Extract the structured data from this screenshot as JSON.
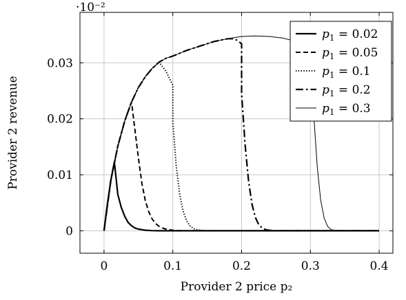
{
  "chart_data": {
    "type": "line",
    "title": "",
    "xlabel": "Provider 2 price p₂",
    "ylabel": "Provider 2 revenue",
    "scale_note": "·10⁻²",
    "xlim": [
      -0.035,
      0.42
    ],
    "ylim": [
      -0.004,
      0.039
    ],
    "x_ticks": [
      0,
      0.1,
      0.2,
      0.3,
      0.4
    ],
    "x_tick_labels": [
      "0",
      "0.1",
      "0.2",
      "0.3",
      "0.4"
    ],
    "y_ticks": [
      0,
      0.01,
      0.02,
      0.03
    ],
    "y_tick_labels": [
      "0",
      "0.01",
      "0.02",
      "0.03"
    ],
    "grid": true,
    "legend_position": "top-right",
    "series": [
      {
        "name": "p₁ = 0.02",
        "name_var": "p",
        "name_sub": "1",
        "name_val": " = 0.02",
        "style": "solid-thick",
        "x": [
          0,
          0.005,
          0.01,
          0.015,
          0.02,
          0.02,
          0.025,
          0.03,
          0.035,
          0.04,
          0.045,
          0.05,
          0.06,
          0.07,
          0.08,
          0.1,
          0.2,
          0.3,
          0.4
        ],
        "y": [
          0,
          0.0049,
          0.0091,
          0.0123,
          0.0065,
          0.0065,
          0.0042,
          0.0026,
          0.0015,
          0.0009,
          0.0005,
          0.0003,
          0.0001,
          3e-05,
          1e-05,
          0,
          0,
          0,
          0
        ]
      },
      {
        "name": "p₁ = 0.05",
        "name_var": "p",
        "name_sub": "1",
        "name_val": " = 0.05",
        "style": "dashed",
        "x": [
          0,
          0.01,
          0.02,
          0.03,
          0.04,
          0.05,
          0.05,
          0.055,
          0.06,
          0.065,
          0.07,
          0.075,
          0.08,
          0.085,
          0.09,
          0.1,
          0.11,
          0.12,
          0.2,
          0.3,
          0.4
        ],
        "y": [
          0,
          0.0091,
          0.0151,
          0.0196,
          0.023,
          0.013,
          0.013,
          0.0085,
          0.0054,
          0.0034,
          0.0021,
          0.0013,
          0.0008,
          0.0005,
          0.0003,
          0.0001,
          3e-05,
          0,
          0,
          0,
          0
        ]
      },
      {
        "name": "p₁ = 0.1",
        "name_var": "p",
        "name_sub": "1",
        "name_val": " = 0.1",
        "style": "dotted",
        "x": [
          0,
          0.01,
          0.02,
          0.03,
          0.04,
          0.05,
          0.06,
          0.07,
          0.08,
          0.09,
          0.1,
          0.1,
          0.105,
          0.11,
          0.115,
          0.12,
          0.125,
          0.13,
          0.135,
          0.14,
          0.15,
          0.2,
          0.3,
          0.4
        ],
        "y": [
          0,
          0.0091,
          0.0151,
          0.0196,
          0.023,
          0.0256,
          0.0275,
          0.029,
          0.0301,
          0.0285,
          0.026,
          0.0195,
          0.0115,
          0.0065,
          0.0035,
          0.0018,
          0.0009,
          0.0004,
          0.0002,
          0.0001,
          0,
          0,
          0,
          0
        ]
      },
      {
        "name": "p₁ = 0.2",
        "name_var": "p",
        "name_sub": "1",
        "name_val": " = 0.2",
        "style": "dashdot",
        "x": [
          0,
          0.01,
          0.02,
          0.03,
          0.04,
          0.05,
          0.06,
          0.07,
          0.08,
          0.09,
          0.1,
          0.12,
          0.14,
          0.16,
          0.18,
          0.19,
          0.2,
          0.2,
          0.205,
          0.21,
          0.215,
          0.22,
          0.225,
          0.23,
          0.235,
          0.24,
          0.25,
          0.3,
          0.4
        ],
        "y": [
          0,
          0.0091,
          0.0151,
          0.0196,
          0.023,
          0.0256,
          0.0275,
          0.029,
          0.0301,
          0.0308,
          0.0312,
          0.0322,
          0.033,
          0.0338,
          0.0343,
          0.0343,
          0.0334,
          0.0245,
          0.0155,
          0.009,
          0.0048,
          0.0024,
          0.0011,
          0.0005,
          0.0002,
          0.0001,
          0,
          0,
          0
        ]
      },
      {
        "name": "p₁ = 0.3",
        "name_var": "p",
        "name_sub": "1",
        "name_val": " = 0.3",
        "style": "solid-thin",
        "x": [
          0,
          0.01,
          0.02,
          0.03,
          0.04,
          0.05,
          0.06,
          0.07,
          0.08,
          0.09,
          0.1,
          0.12,
          0.14,
          0.16,
          0.18,
          0.2,
          0.22,
          0.24,
          0.26,
          0.28,
          0.29,
          0.295,
          0.3,
          0.305,
          0.31,
          0.315,
          0.32,
          0.325,
          0.33,
          0.34,
          0.4
        ],
        "y": [
          0,
          0.0091,
          0.0151,
          0.0196,
          0.023,
          0.0256,
          0.0275,
          0.029,
          0.0301,
          0.0308,
          0.0312,
          0.0322,
          0.033,
          0.0338,
          0.0343,
          0.0347,
          0.0348,
          0.0347,
          0.0344,
          0.0338,
          0.0334,
          0.033,
          0.0318,
          0.0205,
          0.0115,
          0.0055,
          0.0023,
          0.0008,
          0.0002,
          0,
          0
        ]
      }
    ]
  }
}
